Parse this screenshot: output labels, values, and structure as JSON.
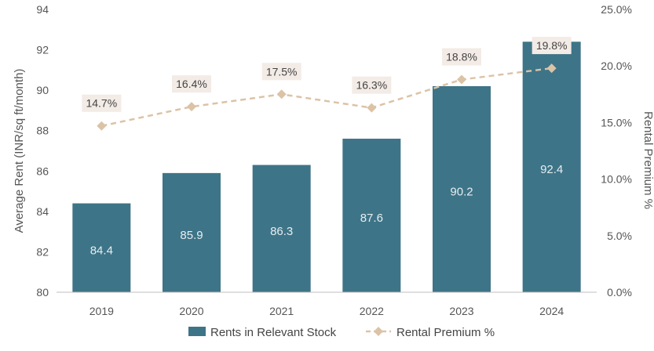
{
  "chart_data": {
    "type": "bar",
    "categories": [
      "2019",
      "2020",
      "2021",
      "2022",
      "2023",
      "2024"
    ],
    "series": [
      {
        "name": "Rents in Relevant Stock",
        "type": "bar",
        "axis": "left",
        "values": [
          84.4,
          85.9,
          86.3,
          87.6,
          90.2,
          92.4
        ],
        "data_labels": [
          "84.4",
          "85.9",
          "86.3",
          "87.6",
          "90.2",
          "92.4"
        ],
        "color": "#3e7487"
      },
      {
        "name": "Rental Premium %",
        "type": "line",
        "style": "dashed",
        "marker": "diamond",
        "axis": "right",
        "values": [
          14.7,
          16.4,
          17.5,
          16.3,
          18.8,
          19.8
        ],
        "data_labels": [
          "14.7%",
          "16.4%",
          "17.5%",
          "16.3%",
          "18.8%",
          "19.8%"
        ],
        "color": "#dcc3a6"
      }
    ],
    "ylabel": "Average Rent (INR/sq ft/month)",
    "ylim": [
      80,
      94
    ],
    "y_ticks": [
      "80",
      "82",
      "84",
      "86",
      "88",
      "90",
      "92",
      "94"
    ],
    "y2label": "Rental Premium %",
    "y2lim": [
      0,
      25
    ],
    "y2_ticks": [
      "0.0%",
      "5.0%",
      "10.0%",
      "15.0%",
      "20.0%",
      "25.0%"
    ],
    "grid": false,
    "legend_position": "bottom"
  },
  "colors": {
    "bar": "#3e7487",
    "line": "#dcc3a6",
    "label_box": "#f3ebe6"
  }
}
